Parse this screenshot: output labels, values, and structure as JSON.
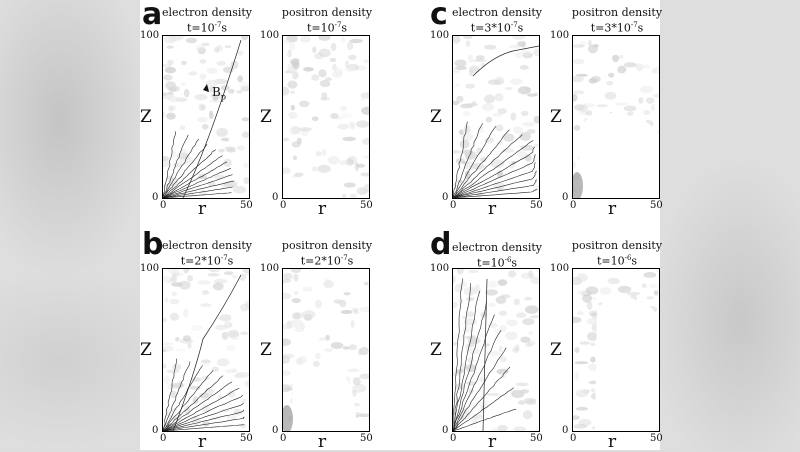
{
  "panels": [
    {
      "letter": "a",
      "electron": {
        "title": "electron density",
        "time": "t=10",
        "exp": "-7",
        "unit": "s"
      },
      "positron": {
        "title": "positron density",
        "time": "t=10",
        "exp": "-7",
        "unit": "s"
      },
      "annotation": {
        "main": "B",
        "sub": "p"
      }
    },
    {
      "letter": "b",
      "electron": {
        "title": "electron density",
        "time": "t=2*10",
        "exp": "-7",
        "unit": "s"
      },
      "positron": {
        "title": "positron density",
        "time": "t=2*10",
        "exp": "-7",
        "unit": "s"
      }
    },
    {
      "letter": "c",
      "electron": {
        "title": "electron density",
        "time": "t=3*10",
        "exp": "-7",
        "unit": "s"
      },
      "positron": {
        "title": "positron density",
        "time": "t=3*10",
        "exp": "-7",
        "unit": "s"
      }
    },
    {
      "letter": "d",
      "electron": {
        "title": "electron density",
        "time": "t=10",
        "exp": "-6",
        "unit": "s"
      },
      "positron": {
        "title": "positron density",
        "time": "t=10",
        "exp": "-6",
        "unit": "s"
      }
    }
  ],
  "axes": {
    "z_label": "Z",
    "r_label": "r",
    "z_ticks": [
      "100",
      "0"
    ],
    "r_ticks": [
      "0",
      "50"
    ]
  }
}
